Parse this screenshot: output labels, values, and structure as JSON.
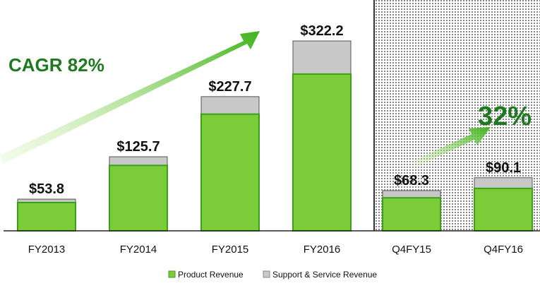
{
  "chart_data": {
    "type": "bar",
    "stacked": true,
    "categories": [
      "FY2013",
      "FY2014",
      "FY2015",
      "FY2016",
      "Q4FY15",
      "Q4FY16"
    ],
    "totals_labels": [
      "$53.8",
      "$125.7",
      "$227.7",
      "$322.2",
      "$68.3",
      "$90.1"
    ],
    "totals": [
      53.8,
      125.7,
      227.7,
      322.2,
      68.3,
      90.1
    ],
    "series": [
      {
        "name": "Product Revenue",
        "color": "#7ccc3a",
        "values": [
          48,
          111,
          198,
          266,
          56,
          72
        ]
      },
      {
        "name": "Support & Service Revenue",
        "color": "#c8c8c8",
        "values": [
          5.8,
          14.7,
          29.7,
          56.2,
          12.3,
          18.1
        ]
      }
    ],
    "ylim": [
      0,
      330
    ],
    "annotations": [
      {
        "text": "CAGR 82%",
        "color": "#1f7a1f"
      },
      {
        "text": "32%",
        "color": "#1f7a1f"
      }
    ],
    "legend_placement": "bottom",
    "grid": false
  }
}
